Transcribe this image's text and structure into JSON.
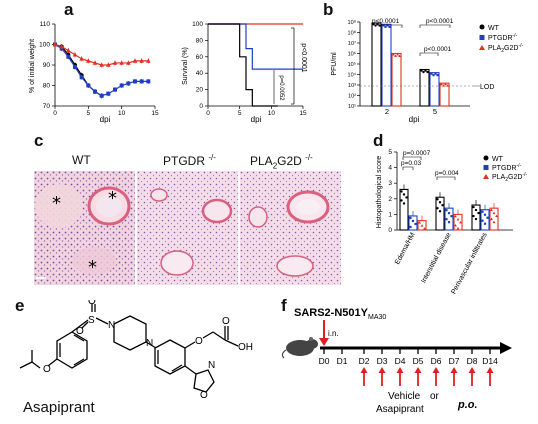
{
  "panels": {
    "a": "a",
    "b": "b",
    "c": "c",
    "d": "d",
    "e": "e",
    "f": "f"
  },
  "panel_a": {
    "weight": {
      "ylabel": "% of initial weight",
      "xlabel": "dpi",
      "yticks": [
        "70",
        "80",
        "90",
        "100",
        "110"
      ],
      "xticks": [
        "0",
        "5",
        "10",
        "15"
      ]
    },
    "survival": {
      "ylabel": "Survival (%)",
      "xlabel": "dpi",
      "yticks": [
        "0",
        "20",
        "40",
        "60",
        "80",
        "100"
      ],
      "xticks": [
        "0",
        "5",
        "10",
        "15"
      ],
      "p1": "p<0.0001",
      "p2": "p=0.0052"
    }
  },
  "panel_b": {
    "ylabel": "PFU/ml",
    "yticks": [
      "10¹",
      "10²",
      "10³",
      "10⁴",
      "10⁵",
      "10⁶",
      "10⁷",
      "10⁸",
      "10⁹"
    ],
    "xticks": [
      "2",
      "5"
    ],
    "xlabel": "dpi",
    "lod": "LOD",
    "p_left": "p<0.0001",
    "p_right_top": "p<0.0001",
    "p_right_mid": "p<0.0001",
    "legend": [
      "WT",
      "PTGDR",
      "PLA"
    ],
    "legend_sup": [
      "",
      "-/-",
      "-/-"
    ],
    "legend_sub": [
      "",
      "",
      "2"
    ],
    "legend_tail": [
      "",
      "",
      "G2D"
    ]
  },
  "panel_c": {
    "labels": [
      "WT",
      "PTGDR",
      "PLA"
    ],
    "sup": [
      "",
      "-/-",
      "-/-"
    ],
    "sub": [
      "",
      "",
      "2"
    ],
    "tail": [
      "",
      "",
      "G2D"
    ]
  },
  "panel_d": {
    "ylabel": "Histopathological score",
    "yticks": [
      "0",
      "1",
      "2",
      "3",
      "4",
      "5"
    ],
    "categories": [
      "Edema/HM",
      "Interstitial disease",
      "Perivascular infiltrates"
    ],
    "p1": "p=0.0007",
    "p2": "p=0.03",
    "p3": "p=0.004",
    "legend": [
      "WT",
      "PTGDR",
      "PLA"
    ]
  },
  "panel_e": {
    "name": "Asapiprant"
  },
  "panel_f": {
    "virus": "SARS2-N501Y",
    "virus_sub": "MA30",
    "route_in": "i.n.",
    "days_top": [
      "D0",
      "D1"
    ],
    "days_treat": [
      "D2",
      "D3",
      "D4",
      "D5",
      "D6",
      "D7",
      "D8",
      "D14"
    ],
    "vehicle": "Vehicle",
    "or": "or",
    "drug": "Asapiprant",
    "route_po": "p.o."
  },
  "chart_data": [
    {
      "type": "line",
      "panel": "a-left",
      "xlabel": "dpi",
      "ylabel": "% of initial weight",
      "ylim": [
        70,
        110
      ],
      "xlim": [
        0,
        15
      ],
      "series": [
        {
          "name": "WT",
          "color": "#000000",
          "x": [
            0,
            1,
            2,
            3,
            4,
            5,
            6,
            7
          ],
          "values": [
            100,
            99,
            95,
            90,
            85,
            80,
            77,
            75
          ]
        },
        {
          "name": "PTGDR-/-",
          "color": "#1f3fbf",
          "x": [
            0,
            1,
            2,
            3,
            4,
            5,
            6,
            7,
            8,
            9,
            10,
            11,
            12,
            13,
            14
          ],
          "values": [
            100,
            98,
            94,
            89,
            84,
            80,
            77,
            75,
            76,
            78,
            80,
            81,
            82,
            82,
            82
          ]
        },
        {
          "name": "PLA2G2D-/-",
          "color": "#e03020",
          "x": [
            0,
            1,
            2,
            3,
            4,
            5,
            6,
            7,
            8,
            9,
            10,
            11,
            12,
            13,
            14
          ],
          "values": [
            100,
            99,
            97,
            95,
            93,
            92,
            91,
            90,
            90,
            91,
            91,
            91,
            92,
            92,
            92
          ]
        }
      ]
    },
    {
      "type": "line",
      "panel": "a-right",
      "xlabel": "dpi",
      "ylabel": "Survival (%)",
      "ylim": [
        0,
        100
      ],
      "xlim": [
        0,
        15
      ],
      "series": [
        {
          "name": "WT",
          "color": "#000000",
          "x": [
            0,
            5,
            5,
            6,
            6,
            7,
            7,
            11
          ],
          "values": [
            100,
            100,
            60,
            60,
            20,
            20,
            0,
            0
          ]
        },
        {
          "name": "PTGDR-/-",
          "color": "#1f3fbf",
          "x": [
            0,
            6,
            6,
            7,
            7,
            15
          ],
          "values": [
            100,
            100,
            70,
            70,
            45,
            45
          ]
        },
        {
          "name": "PLA2G2D-/-",
          "color": "#e03020",
          "x": [
            0,
            15
          ],
          "values": [
            100,
            100
          ]
        }
      ]
    },
    {
      "type": "bar",
      "panel": "b",
      "log_scale": true,
      "categories": [
        "2",
        "5"
      ],
      "xlabel": "dpi",
      "ylabel": "PFU/ml",
      "series": [
        {
          "name": "WT",
          "color": "#000000",
          "values": [
            800000000,
            30000
          ]
        },
        {
          "name": "PTGDR-/-",
          "color": "#1f3fbf",
          "values": [
            600000000,
            15000
          ]
        },
        {
          "name": "PLA2G2D-/-",
          "color": "#e03020",
          "values": [
            1000000,
            1500
          ]
        }
      ],
      "lod": 100
    },
    {
      "type": "bar",
      "panel": "d",
      "categories": [
        "Edema/HM",
        "Interstitial disease",
        "Perivascular infiltrates"
      ],
      "ylabel": "Histopathological score",
      "ylim": [
        0,
        5
      ],
      "series": [
        {
          "name": "WT",
          "color": "#000000",
          "values": [
            2.6,
            2.1,
            1.6
          ]
        },
        {
          "name": "PTGDR-/-",
          "color": "#1f3fbf",
          "values": [
            0.9,
            1.4,
            1.3
          ]
        },
        {
          "name": "PLA2G2D-/-",
          "color": "#e03020",
          "values": [
            0.6,
            1.0,
            1.4
          ]
        }
      ]
    }
  ]
}
